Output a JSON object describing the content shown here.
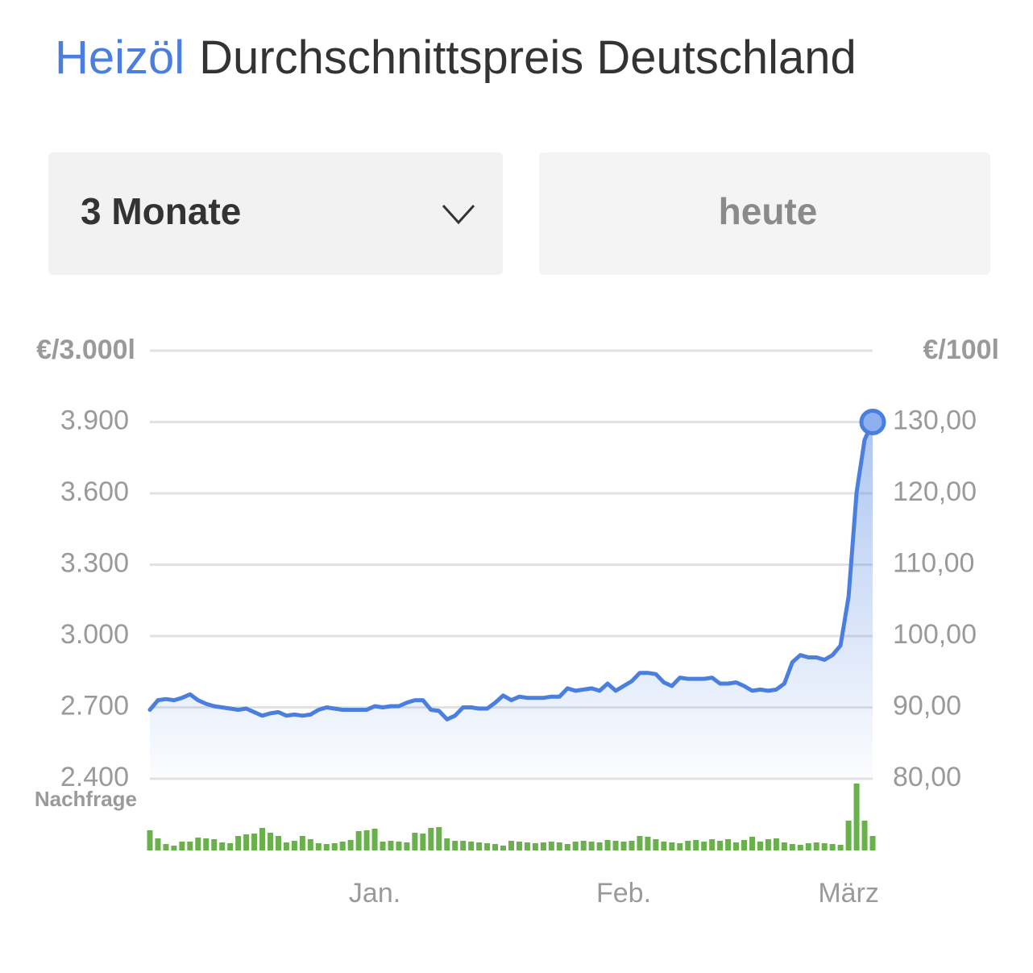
{
  "header": {
    "title_highlight": "Heizöl",
    "title_rest": "Durchschnittspreis Deutschland"
  },
  "controls": {
    "period": "3 Monate",
    "date": "heute"
  },
  "chart_data": {
    "type": "line",
    "ylabel": "€/3.000l",
    "y2label": "€/100l",
    "categories": [
      null,
      null,
      null,
      null,
      null,
      null,
      null,
      null,
      null,
      null,
      null,
      null,
      null,
      null,
      null,
      null,
      null,
      null,
      null,
      null,
      null,
      null,
      null,
      null,
      null,
      null,
      null,
      null,
      "Jan.",
      null,
      null,
      null,
      null,
      null,
      null,
      null,
      null,
      null,
      null,
      null,
      null,
      null,
      null,
      null,
      null,
      null,
      null,
      null,
      null,
      null,
      null,
      null,
      null,
      null,
      null,
      null,
      null,
      null,
      null,
      "Feb.",
      null,
      null,
      null,
      null,
      null,
      null,
      null,
      null,
      null,
      null,
      null,
      null,
      null,
      null,
      null,
      null,
      null,
      null,
      null,
      null,
      null,
      null,
      null,
      null,
      null,
      null,
      null,
      "März",
      null,
      null,
      null
    ],
    "series": [
      {
        "color": "#4a7fe0",
        "values": [
          2690,
          2730,
          2735,
          2730,
          2740,
          2755,
          2730,
          2715,
          2705,
          2700,
          2695,
          2690,
          2695,
          2680,
          2665,
          2675,
          2680,
          2665,
          2670,
          2665,
          2670,
          2690,
          2700,
          2695,
          2690,
          2690,
          2690,
          2690,
          2705,
          2700,
          2705,
          2705,
          2720,
          2730,
          2730,
          2690,
          2685,
          2650,
          2665,
          2700,
          2700,
          2695,
          2695,
          2720,
          2750,
          2730,
          2745,
          2740,
          2740,
          2740,
          2745,
          2745,
          2780,
          2770,
          2775,
          2780,
          2770,
          2800,
          2770,
          2790,
          2810,
          2845,
          2845,
          2840,
          2805,
          2790,
          2825,
          2820,
          2820,
          2820,
          2825,
          2800,
          2800,
          2805,
          2790,
          2770,
          2775,
          2770,
          2775,
          2800,
          2890,
          2920,
          2910,
          2910,
          2900,
          2920,
          2960,
          3165,
          3605,
          3825,
          3900
        ]
      },
      {
        "name": "Nachfrage",
        "type": "bar",
        "color": "#6ab04c",
        "values": [
          25,
          15,
          8,
          6,
          11,
          11,
          16,
          15,
          14,
          10,
          9,
          18,
          20,
          21,
          28,
          22,
          18,
          10,
          12,
          18,
          14,
          9,
          8,
          9,
          11,
          13,
          24,
          25,
          27,
          11,
          12,
          11,
          10,
          22,
          21,
          28,
          29,
          15,
          12,
          12,
          11,
          10,
          9,
          8,
          6,
          12,
          11,
          10,
          9,
          10,
          11,
          10,
          8,
          11,
          12,
          11,
          10,
          13,
          12,
          11,
          12,
          18,
          17,
          14,
          11,
          10,
          9,
          12,
          13,
          11,
          14,
          12,
          14,
          10,
          13,
          17,
          11,
          14,
          15,
          10,
          8,
          7,
          9,
          10,
          9,
          8,
          7,
          37,
          83,
          37,
          18
        ]
      }
    ],
    "ylim": [
      2400,
      4200
    ],
    "yticks": [
      {
        "value": 2400,
        "label": "2.400"
      },
      {
        "value": 2700,
        "label": "2.700"
      },
      {
        "value": 3000,
        "label": "3.000"
      },
      {
        "value": 3300,
        "label": "3.300"
      },
      {
        "value": 3600,
        "label": "3.600"
      },
      {
        "value": 3900,
        "label": "3.900"
      }
    ],
    "y2lim": [
      80,
      140
    ],
    "y2ticks": [
      {
        "value": 80,
        "label": "80,00"
      },
      {
        "value": 90,
        "label": "90,00"
      },
      {
        "value": 100,
        "label": "100,00"
      },
      {
        "value": 110,
        "label": "110,00"
      },
      {
        "value": 120,
        "label": "120,00"
      },
      {
        "value": 130,
        "label": "130,00"
      }
    ],
    "grid": true
  }
}
